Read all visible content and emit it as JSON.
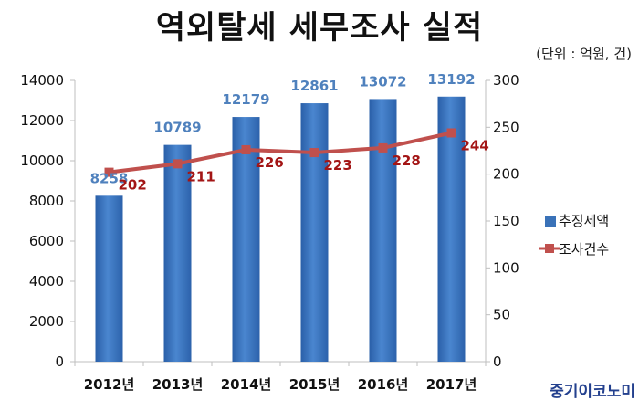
{
  "title": "역외탈세 세무조사 실적",
  "unit_note": "(단위 : 억원, 건)",
  "source": "중기이코노미",
  "chart_data": {
    "type": "bar+line",
    "categories": [
      "2012년",
      "2013년",
      "2014년",
      "2015년",
      "2016년",
      "2017년"
    ],
    "series": [
      {
        "name": "추징세액",
        "type": "bar",
        "axis": "left",
        "values": [
          8258,
          10789,
          12179,
          12861,
          13072,
          13192
        ],
        "color": "#3a72b8"
      },
      {
        "name": "조사건수",
        "type": "line",
        "axis": "right",
        "values": [
          202,
          211,
          226,
          223,
          228,
          244
        ],
        "color": "#c0504d"
      }
    ],
    "y_left": {
      "min": 0,
      "max": 14000,
      "ticks": [
        0,
        2000,
        4000,
        6000,
        8000,
        10000,
        12000,
        14000
      ]
    },
    "y_right": {
      "min": 0,
      "max": 300,
      "ticks": [
        0,
        50,
        100,
        150,
        200,
        250,
        300
      ]
    },
    "legend_position": "right",
    "grid": false
  }
}
